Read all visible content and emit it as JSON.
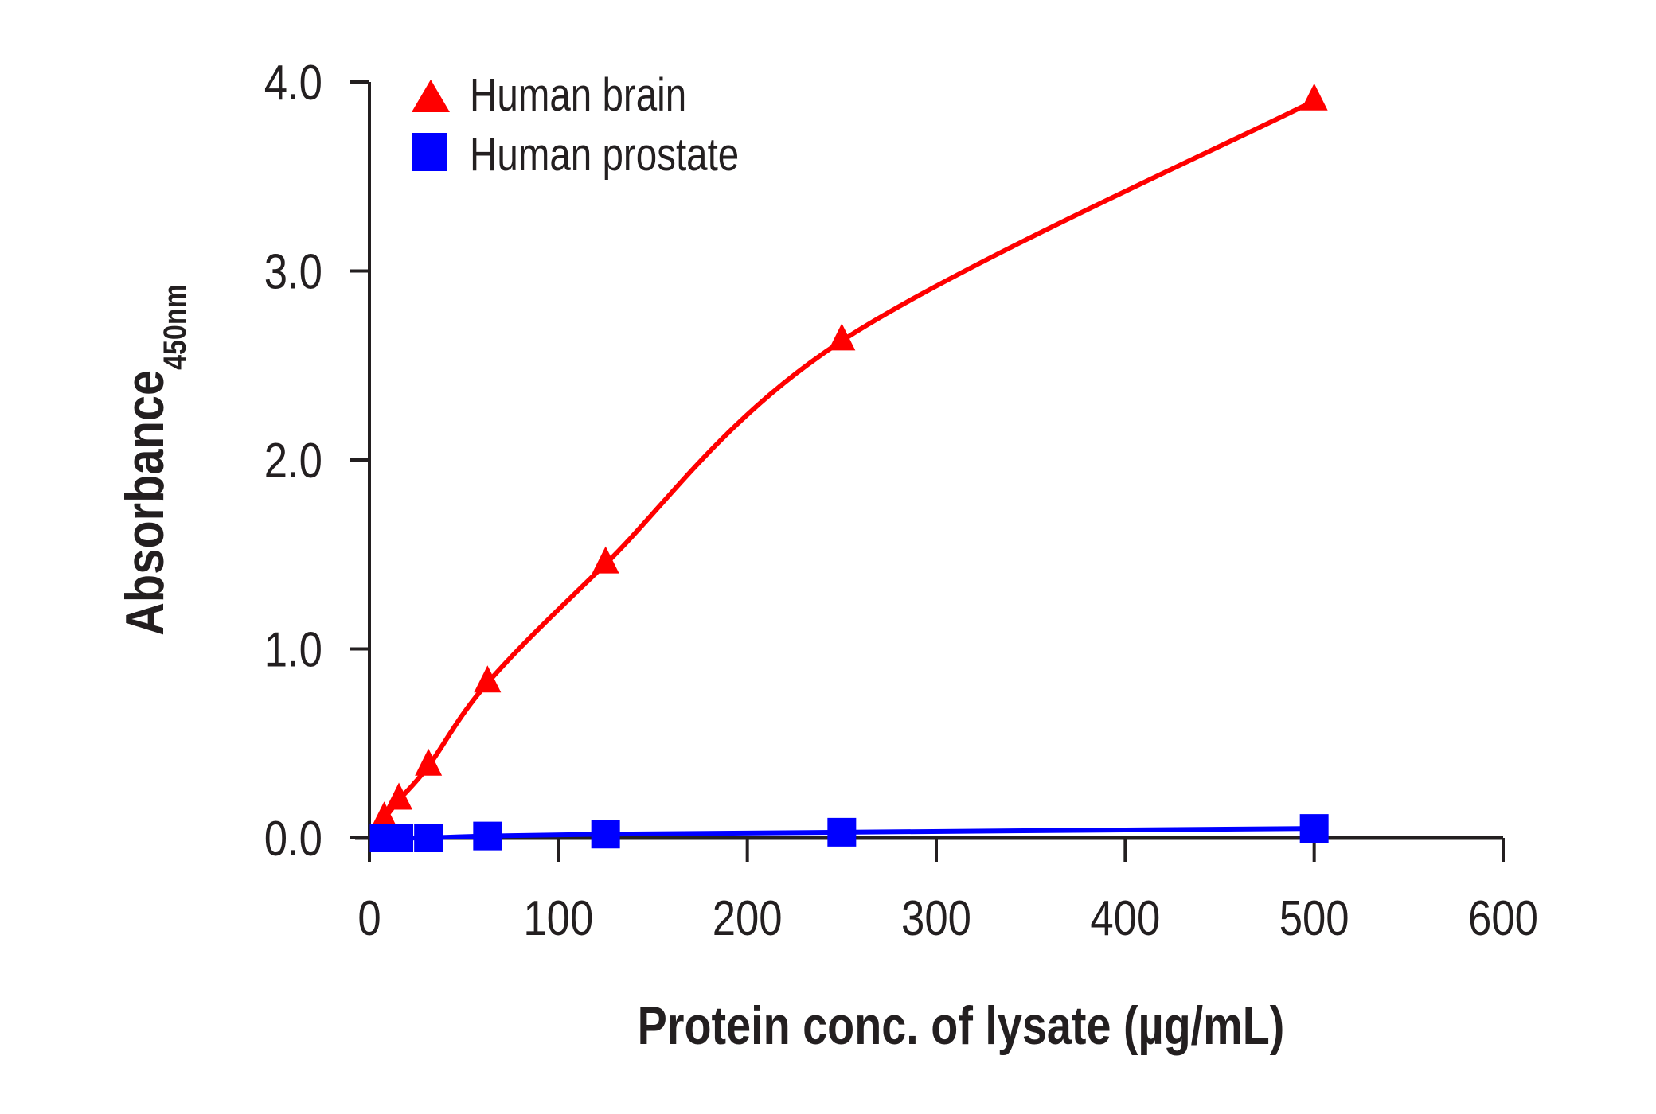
{
  "chart_data": {
    "type": "line",
    "title": "",
    "xlabel": "Protein conc. of lysate (µg/mL)",
    "ylabel": "Absorbance",
    "ylabel_subscript": "450nm",
    "xlim": [
      0,
      600
    ],
    "ylim": [
      0,
      4.0
    ],
    "xticks": [
      "0",
      "100",
      "200",
      "300",
      "400",
      "500",
      "600"
    ],
    "xtick_values": [
      0,
      100,
      200,
      300,
      400,
      500,
      600
    ],
    "yticks": [
      "0.0",
      "1.0",
      "2.0",
      "3.0",
      "4.0"
    ],
    "ytick_values": [
      0,
      1,
      2,
      3,
      4
    ],
    "grid": false,
    "legend_position": "top-left",
    "series": [
      {
        "name": "Human brain",
        "color": "#ff0000",
        "marker": "triangle",
        "x": [
          7.8,
          15.6,
          31.25,
          62.5,
          125,
          250,
          500
        ],
        "y": [
          0.1,
          0.2,
          0.38,
          0.82,
          1.45,
          2.63,
          3.9
        ]
      },
      {
        "name": "Human prostate",
        "color": "#0000ff",
        "marker": "square",
        "x": [
          7.8,
          15.6,
          31.25,
          62.5,
          125,
          250,
          500
        ],
        "y": [
          0.0,
          0.0,
          0.0,
          0.01,
          0.02,
          0.03,
          0.05
        ]
      }
    ]
  }
}
